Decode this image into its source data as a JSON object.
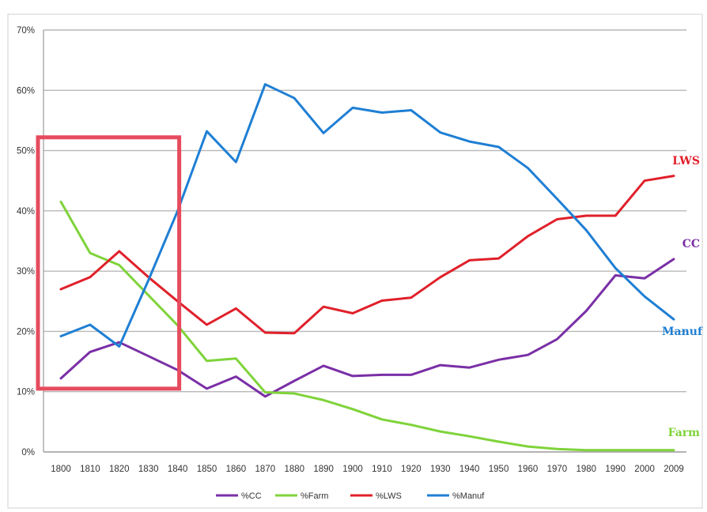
{
  "chart_data": {
    "type": "line",
    "title": "",
    "xlabel": "",
    "ylabel": "",
    "ylim": [
      0,
      70
    ],
    "y_ticks": [
      "0%",
      "10%",
      "20%",
      "30%",
      "40%",
      "50%",
      "60%",
      "70%"
    ],
    "categories": [
      "1800",
      "1810",
      "1820",
      "1830",
      "1840",
      "1850",
      "1860",
      "1870",
      "1880",
      "1890",
      "1900",
      "1910",
      "1920",
      "1930",
      "1940",
      "1950",
      "1960",
      "1970",
      "1980",
      "1990",
      "2000",
      "2009"
    ],
    "grid": "horizontal",
    "legend_position": "bottom",
    "series": [
      {
        "name": "%CC",
        "color": "#7a2fa6",
        "values": [
          12.2,
          16.6,
          18.2,
          15.9,
          13.6,
          10.5,
          12.5,
          9.2,
          11.8,
          14.3,
          12.6,
          12.8,
          12.8,
          14.4,
          14.0,
          15.3,
          16.1,
          18.7,
          23.4,
          29.3,
          28.8,
          32.0
        ]
      },
      {
        "name": "%Farm",
        "color": "#7fd33a",
        "values": [
          41.5,
          33.0,
          31.0,
          26.0,
          21.0,
          15.1,
          15.5,
          9.9,
          9.7,
          8.6,
          7.1,
          5.4,
          4.5,
          3.4,
          2.6,
          1.7,
          0.9,
          0.5,
          0.3,
          0.3,
          0.3,
          0.3
        ]
      },
      {
        "name": "%LWS",
        "color": "#e0202a",
        "values": [
          27.0,
          29.0,
          33.3,
          29.0,
          25.0,
          21.1,
          23.8,
          19.8,
          19.7,
          24.1,
          23.0,
          25.1,
          25.6,
          29.0,
          31.8,
          32.1,
          35.8,
          38.6,
          39.2,
          39.2,
          45.0,
          45.8
        ]
      },
      {
        "name": "%Manuf",
        "color": "#1f7fd4",
        "values": [
          19.2,
          21.1,
          17.5,
          28.5,
          40.0,
          53.2,
          48.1,
          61.0,
          58.7,
          52.9,
          57.1,
          56.3,
          56.7,
          53.0,
          51.5,
          50.6,
          47.1,
          42.0,
          36.8,
          30.5,
          25.8,
          22.0
        ]
      }
    ],
    "annotations": [
      {
        "text": "LWS",
        "color": "#e0202a"
      },
      {
        "text": "CC",
        "color": "#7a2fa6"
      },
      {
        "text": "Manuf",
        "color": "#1f7fd4"
      },
      {
        "text": "Farm",
        "color": "#7fd33a"
      }
    ],
    "highlight_box": {
      "color": "#e64b5e",
      "from_category": "1800",
      "to_category": "1840",
      "y_range": [
        10.5,
        52.2
      ]
    }
  }
}
